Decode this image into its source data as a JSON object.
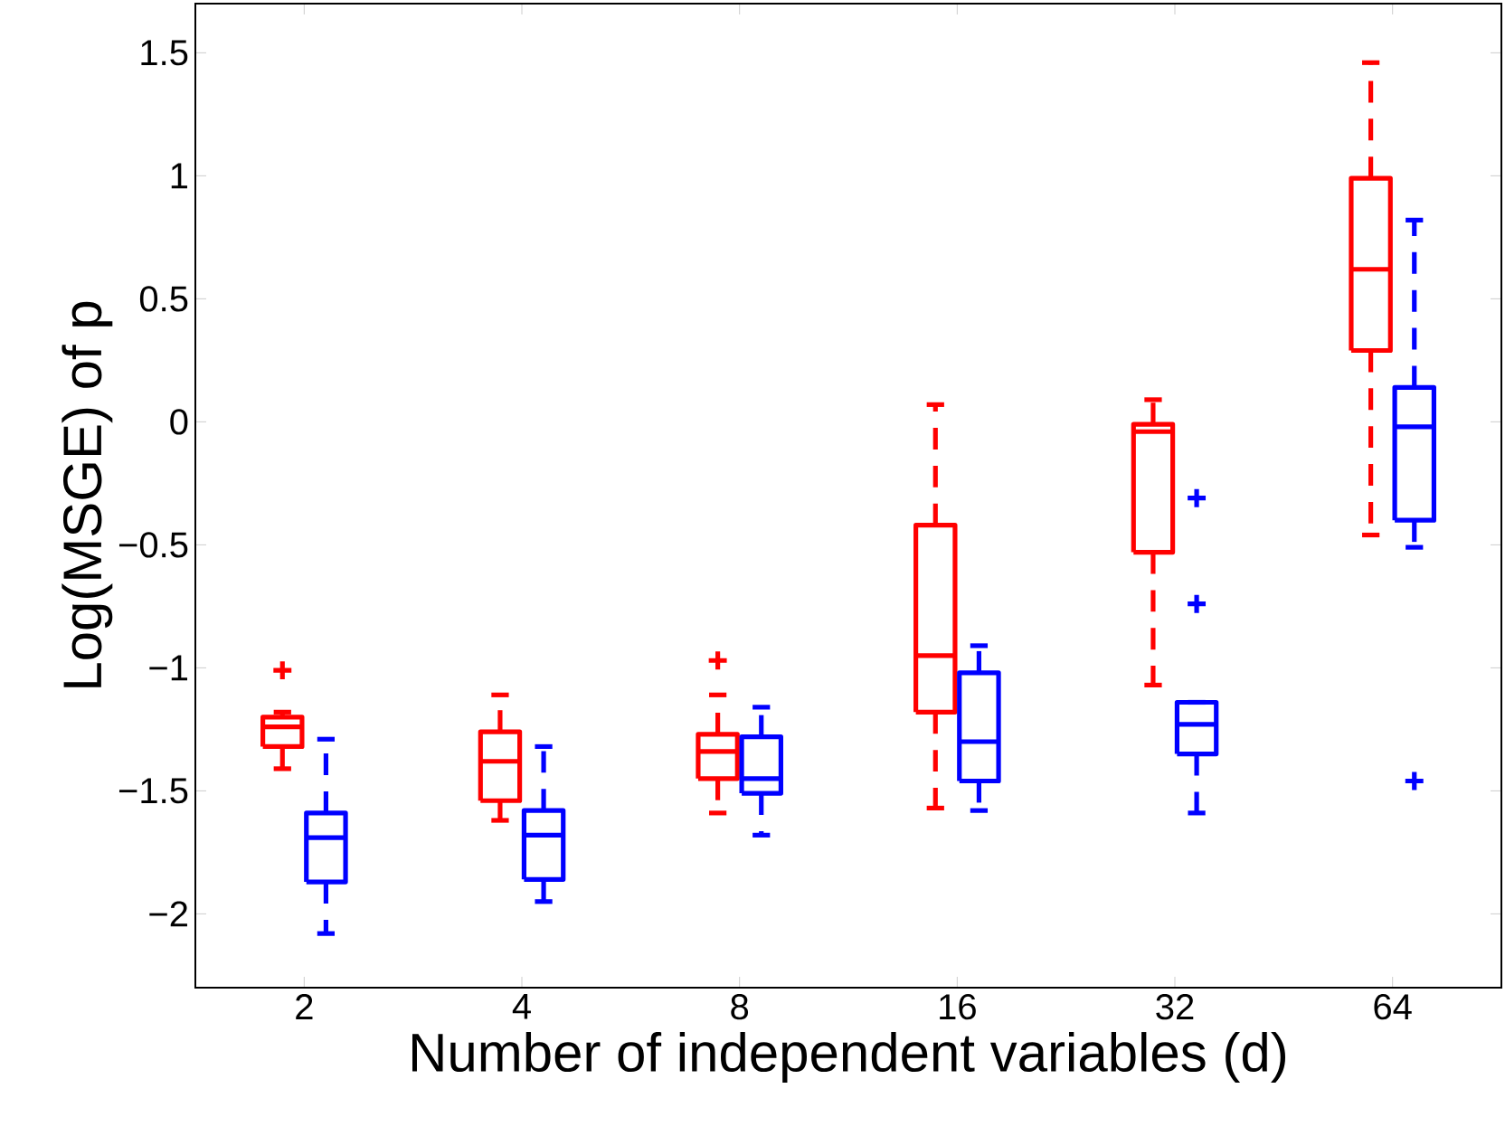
{
  "chart_data": {
    "type": "box",
    "xlabel": "Number of independent variables (d)",
    "ylabel": "Log(MSGE) of p",
    "categories": [
      "2",
      "4",
      "8",
      "16",
      "32",
      "64"
    ],
    "ylim": [
      -2.3,
      1.7
    ],
    "yticks": [
      {
        "value": -2,
        "label": "−2"
      },
      {
        "value": -1.5,
        "label": "−1.5"
      },
      {
        "value": -1,
        "label": "−1"
      },
      {
        "value": -0.5,
        "label": "−0.5"
      },
      0,
      0.5,
      1,
      1.5
    ],
    "series": [
      {
        "color": "#ff0000",
        "boxes": [
          {
            "low": -1.41,
            "q1": -1.32,
            "median": -1.24,
            "q3": -1.2,
            "high": -1.18,
            "outliers": [
              -1.01
            ]
          },
          {
            "low": -1.62,
            "q1": -1.54,
            "median": -1.38,
            "q3": -1.26,
            "high": -1.11
          },
          {
            "low": -1.59,
            "q1": -1.45,
            "median": -1.34,
            "q3": -1.27,
            "high": -1.11,
            "outliers": [
              -0.97
            ]
          },
          {
            "low": -1.57,
            "q1": -1.18,
            "median": -0.95,
            "q3": -0.42,
            "high": 0.07
          },
          {
            "low": -1.07,
            "q1": -0.53,
            "median": -0.04,
            "q3": -0.01,
            "high": 0.09
          },
          {
            "low": -0.46,
            "q1": 0.29,
            "median": 0.62,
            "q3": 0.99,
            "high": 1.46
          }
        ]
      },
      {
        "color": "#0000ff",
        "boxes": [
          {
            "low": -2.08,
            "q1": -1.87,
            "median": -1.69,
            "q3": -1.59,
            "high": -1.29
          },
          {
            "low": -1.95,
            "q1": -1.86,
            "median": -1.68,
            "q3": -1.58,
            "high": -1.32
          },
          {
            "low": -1.68,
            "q1": -1.51,
            "median": -1.45,
            "q3": -1.28,
            "high": -1.16
          },
          {
            "low": -1.58,
            "q1": -1.46,
            "median": -1.3,
            "q3": -1.02,
            "high": -0.91
          },
          {
            "low": -1.59,
            "q1": -1.35,
            "median": -1.23,
            "q3": -1.14,
            "high": -1.14,
            "outliers": [
              -0.31,
              -0.74
            ]
          },
          {
            "low": -0.51,
            "q1": -0.4,
            "median": -0.02,
            "q3": 0.14,
            "high": 0.82,
            "outliers": [
              -1.46
            ]
          }
        ]
      }
    ],
    "marker": "cross",
    "line_style": "dashed"
  }
}
